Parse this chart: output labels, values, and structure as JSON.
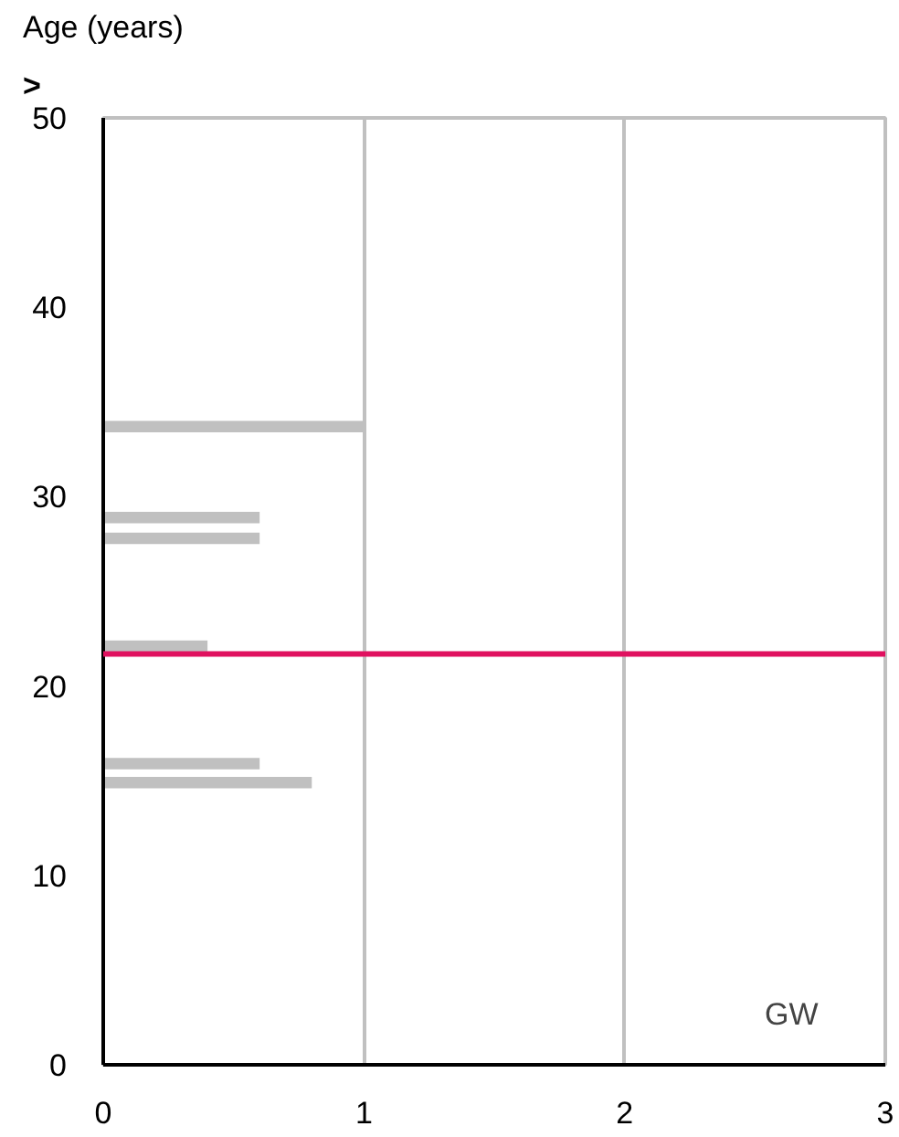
{
  "chart_data": {
    "type": "bar",
    "orientation": "horizontal",
    "ylabel": "Age (years)",
    "x": [
      33.7,
      28.9,
      27.8,
      22.1,
      15.9,
      14.9
    ],
    "values": [
      1.0,
      0.6,
      0.6,
      0.4,
      0.6,
      0.8
    ],
    "color": "#c0c0c0",
    "xlim": [
      0,
      3
    ],
    "xticks": [
      0,
      1,
      2,
      3
    ],
    "ylim": [
      0,
      50
    ],
    "yticks": [
      0,
      10,
      20,
      30,
      40,
      50
    ],
    "grid": "x",
    "ref_lines": [
      {
        "axis": "y",
        "value": 21.7,
        "color": "#e0115f"
      }
    ],
    "annotations": [
      ">",
      "GW"
    ]
  }
}
